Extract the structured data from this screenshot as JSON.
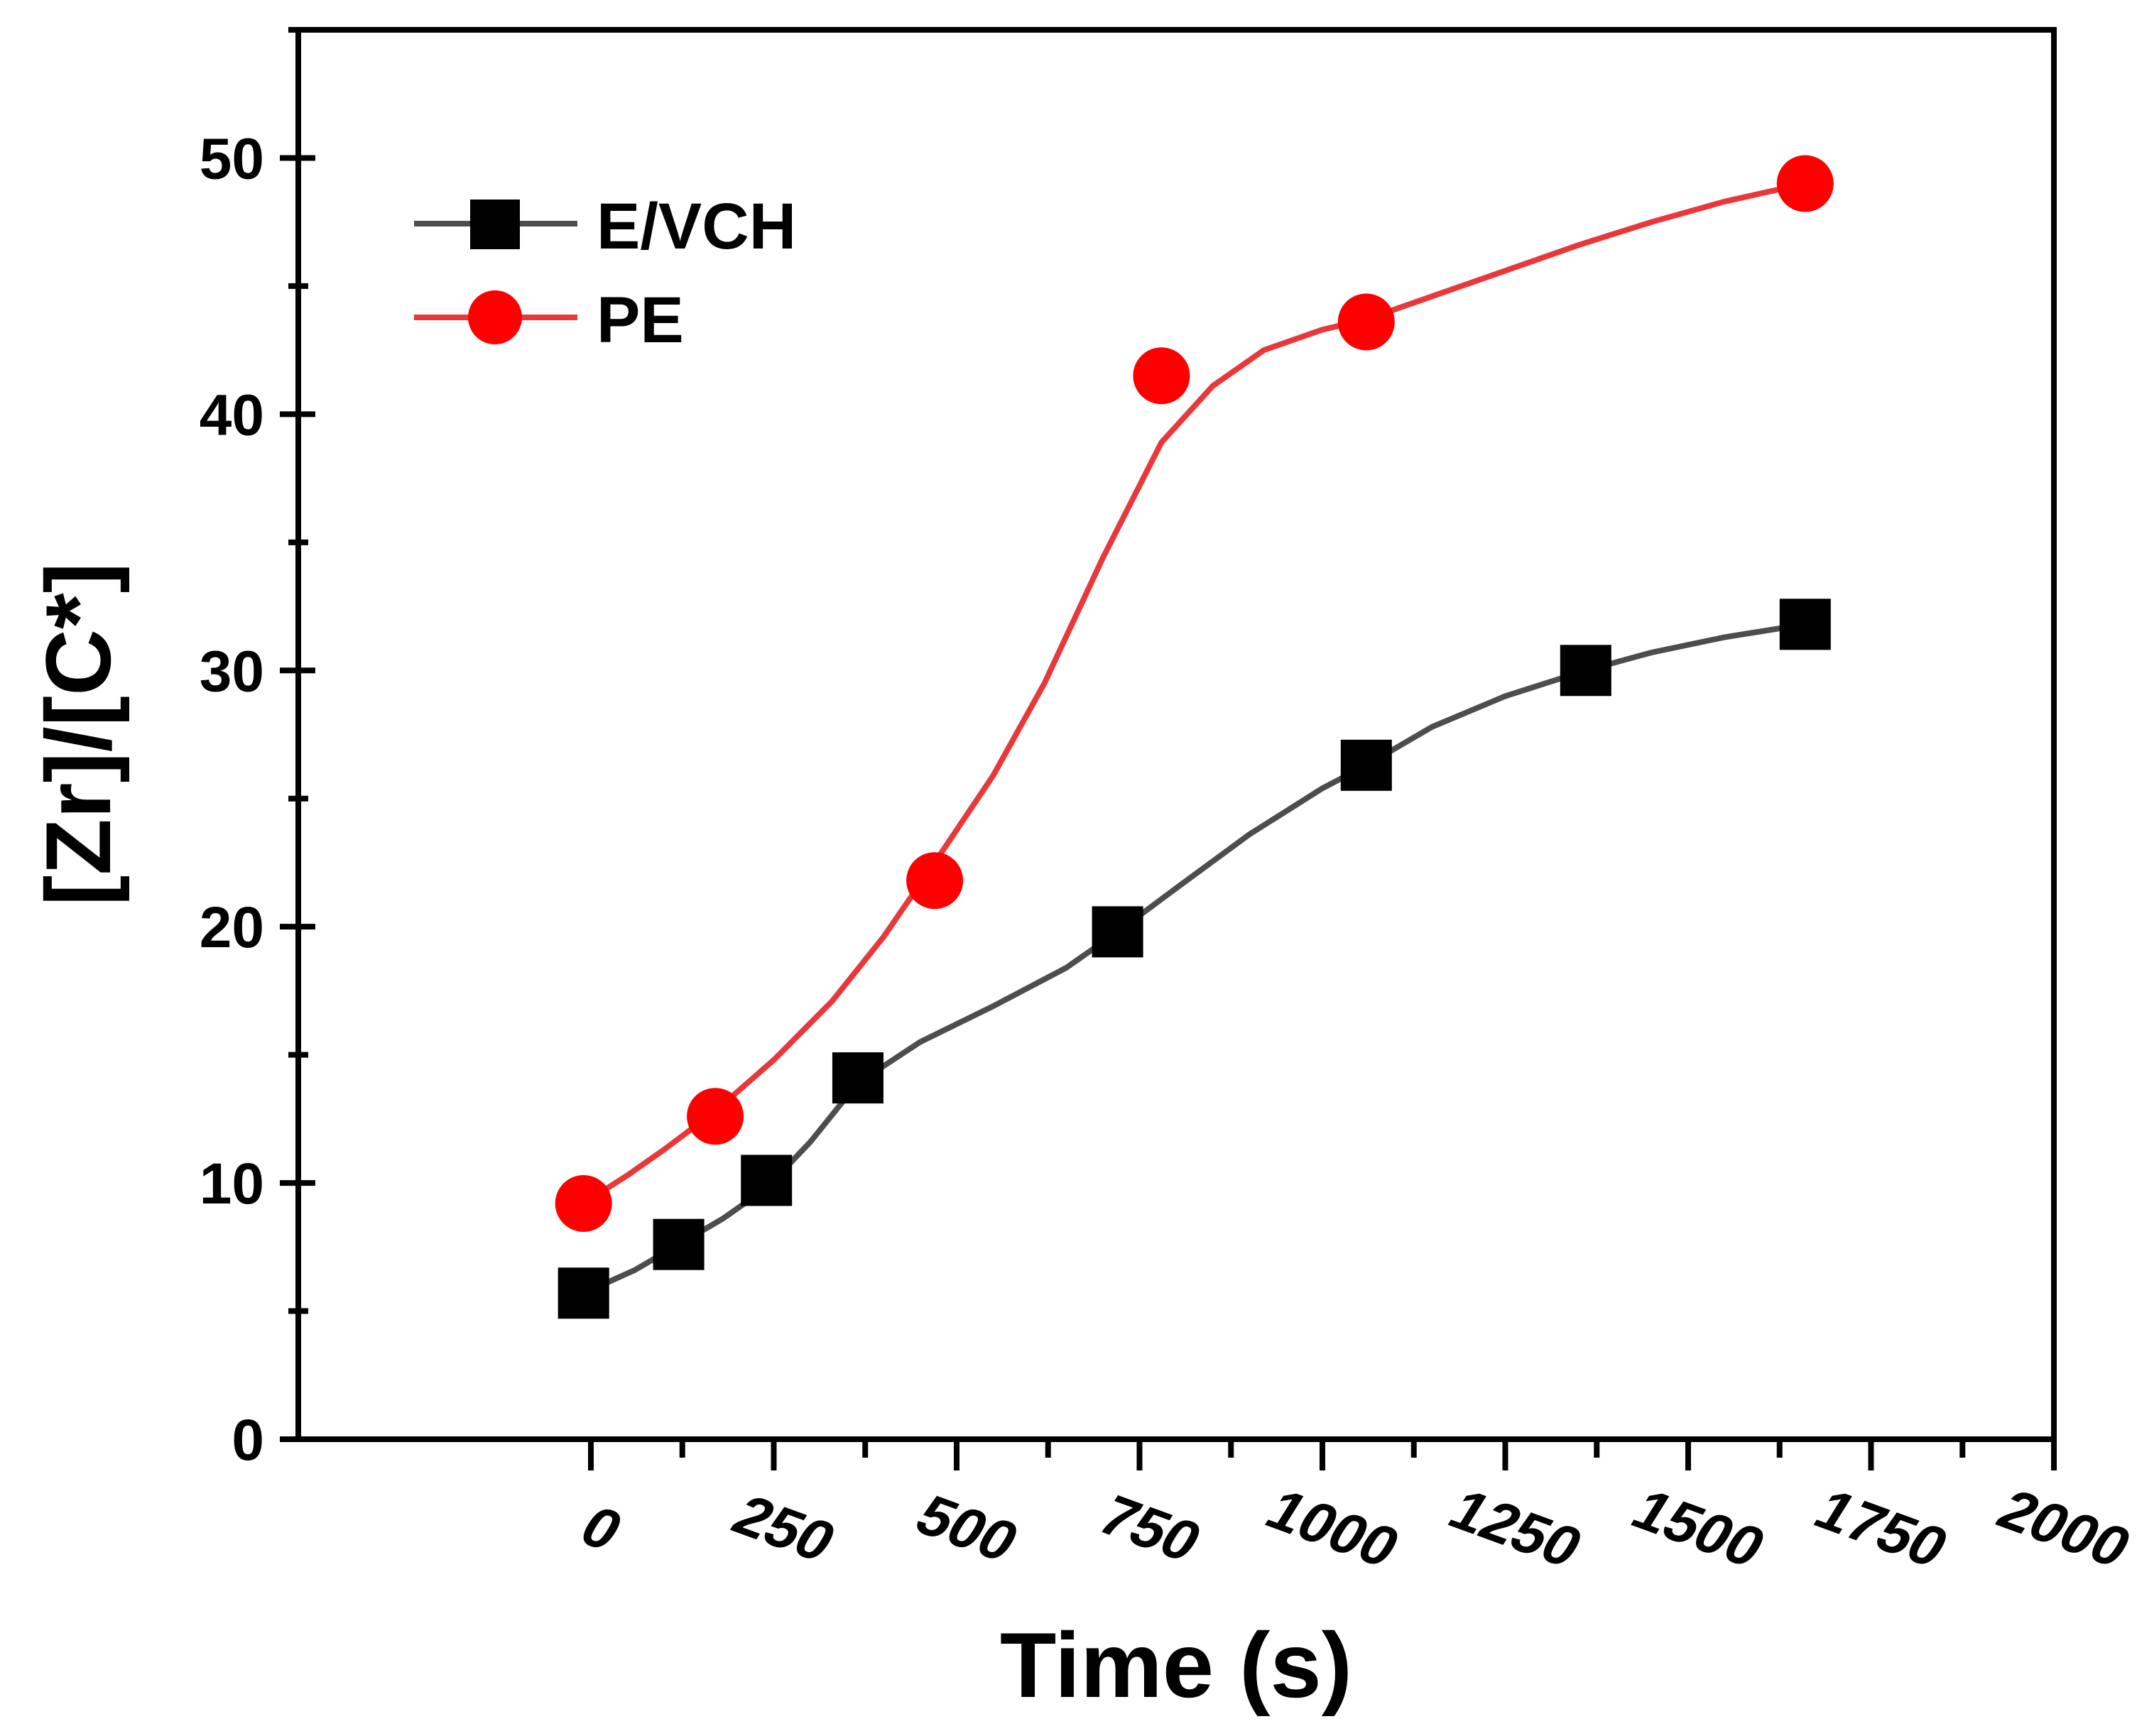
{
  "chart_data": {
    "type": "line",
    "title": "",
    "xlabel": "Time (s)",
    "ylabel": "[Zr]/[C*]",
    "xlim": [
      -400,
      2000
    ],
    "ylim": [
      0,
      55
    ],
    "x_ticks": [
      0,
      250,
      500,
      750,
      1000,
      1250,
      1500,
      1750,
      2000
    ],
    "x_tick_labels": [
      "0",
      "250",
      "500",
      "750",
      "1000",
      "1250",
      "1500",
      "1750",
      "2000"
    ],
    "x_minor_ticks": [
      125,
      375,
      625,
      875,
      1125,
      1375,
      1625,
      1875
    ],
    "y_ticks": [
      0,
      10,
      20,
      30,
      40,
      50
    ],
    "y_tick_labels": [
      "0",
      "10",
      "20",
      "30",
      "40",
      "50"
    ],
    "y_minor_ticks": [
      5,
      15,
      25,
      35,
      45,
      55
    ],
    "grid": false,
    "legend_position": "top-left",
    "series": [
      {
        "name": "E/VCH",
        "color": "#4d4d4d",
        "marker": "square",
        "marker_color": "#000000",
        "x": [
          -10,
          120,
          240,
          365,
          720,
          1060,
          1360,
          1660
        ],
        "y": [
          5.7,
          7.6,
          10.1,
          14.1,
          19.8,
          26.3,
          30.0,
          31.8
        ],
        "fit_x": [
          -10,
          60,
          120,
          180,
          240,
          300,
          365,
          450,
          550,
          650,
          720,
          800,
          900,
          1000,
          1060,
          1150,
          1250,
          1360,
          1450,
          1550,
          1660
        ],
        "fit_y": [
          5.7,
          6.6,
          7.6,
          8.6,
          9.8,
          11.6,
          13.9,
          15.5,
          16.9,
          18.4,
          19.8,
          21.5,
          23.6,
          25.4,
          26.3,
          27.8,
          29.0,
          30.0,
          30.7,
          31.3,
          31.8
        ]
      },
      {
        "name": "PE",
        "color": "#e8383a",
        "marker": "circle",
        "marker_color": "#ff0000",
        "x": [
          -10,
          170,
          470,
          780,
          1060,
          1660
        ],
        "y": [
          9.2,
          12.6,
          21.8,
          41.5,
          43.6,
          49.0
        ],
        "fit_x": [
          -10,
          50,
          100,
          170,
          250,
          330,
          400,
          470,
          550,
          620,
          700,
          780,
          850,
          920,
          1000,
          1060,
          1150,
          1250,
          1350,
          1450,
          1550,
          1660
        ],
        "fit_y": [
          9.2,
          10.3,
          11.3,
          12.8,
          14.8,
          17.1,
          19.6,
          22.5,
          25.9,
          29.5,
          34.4,
          38.9,
          41.1,
          42.5,
          43.3,
          43.7,
          44.6,
          45.6,
          46.6,
          47.5,
          48.3,
          49.0
        ]
      }
    ]
  }
}
